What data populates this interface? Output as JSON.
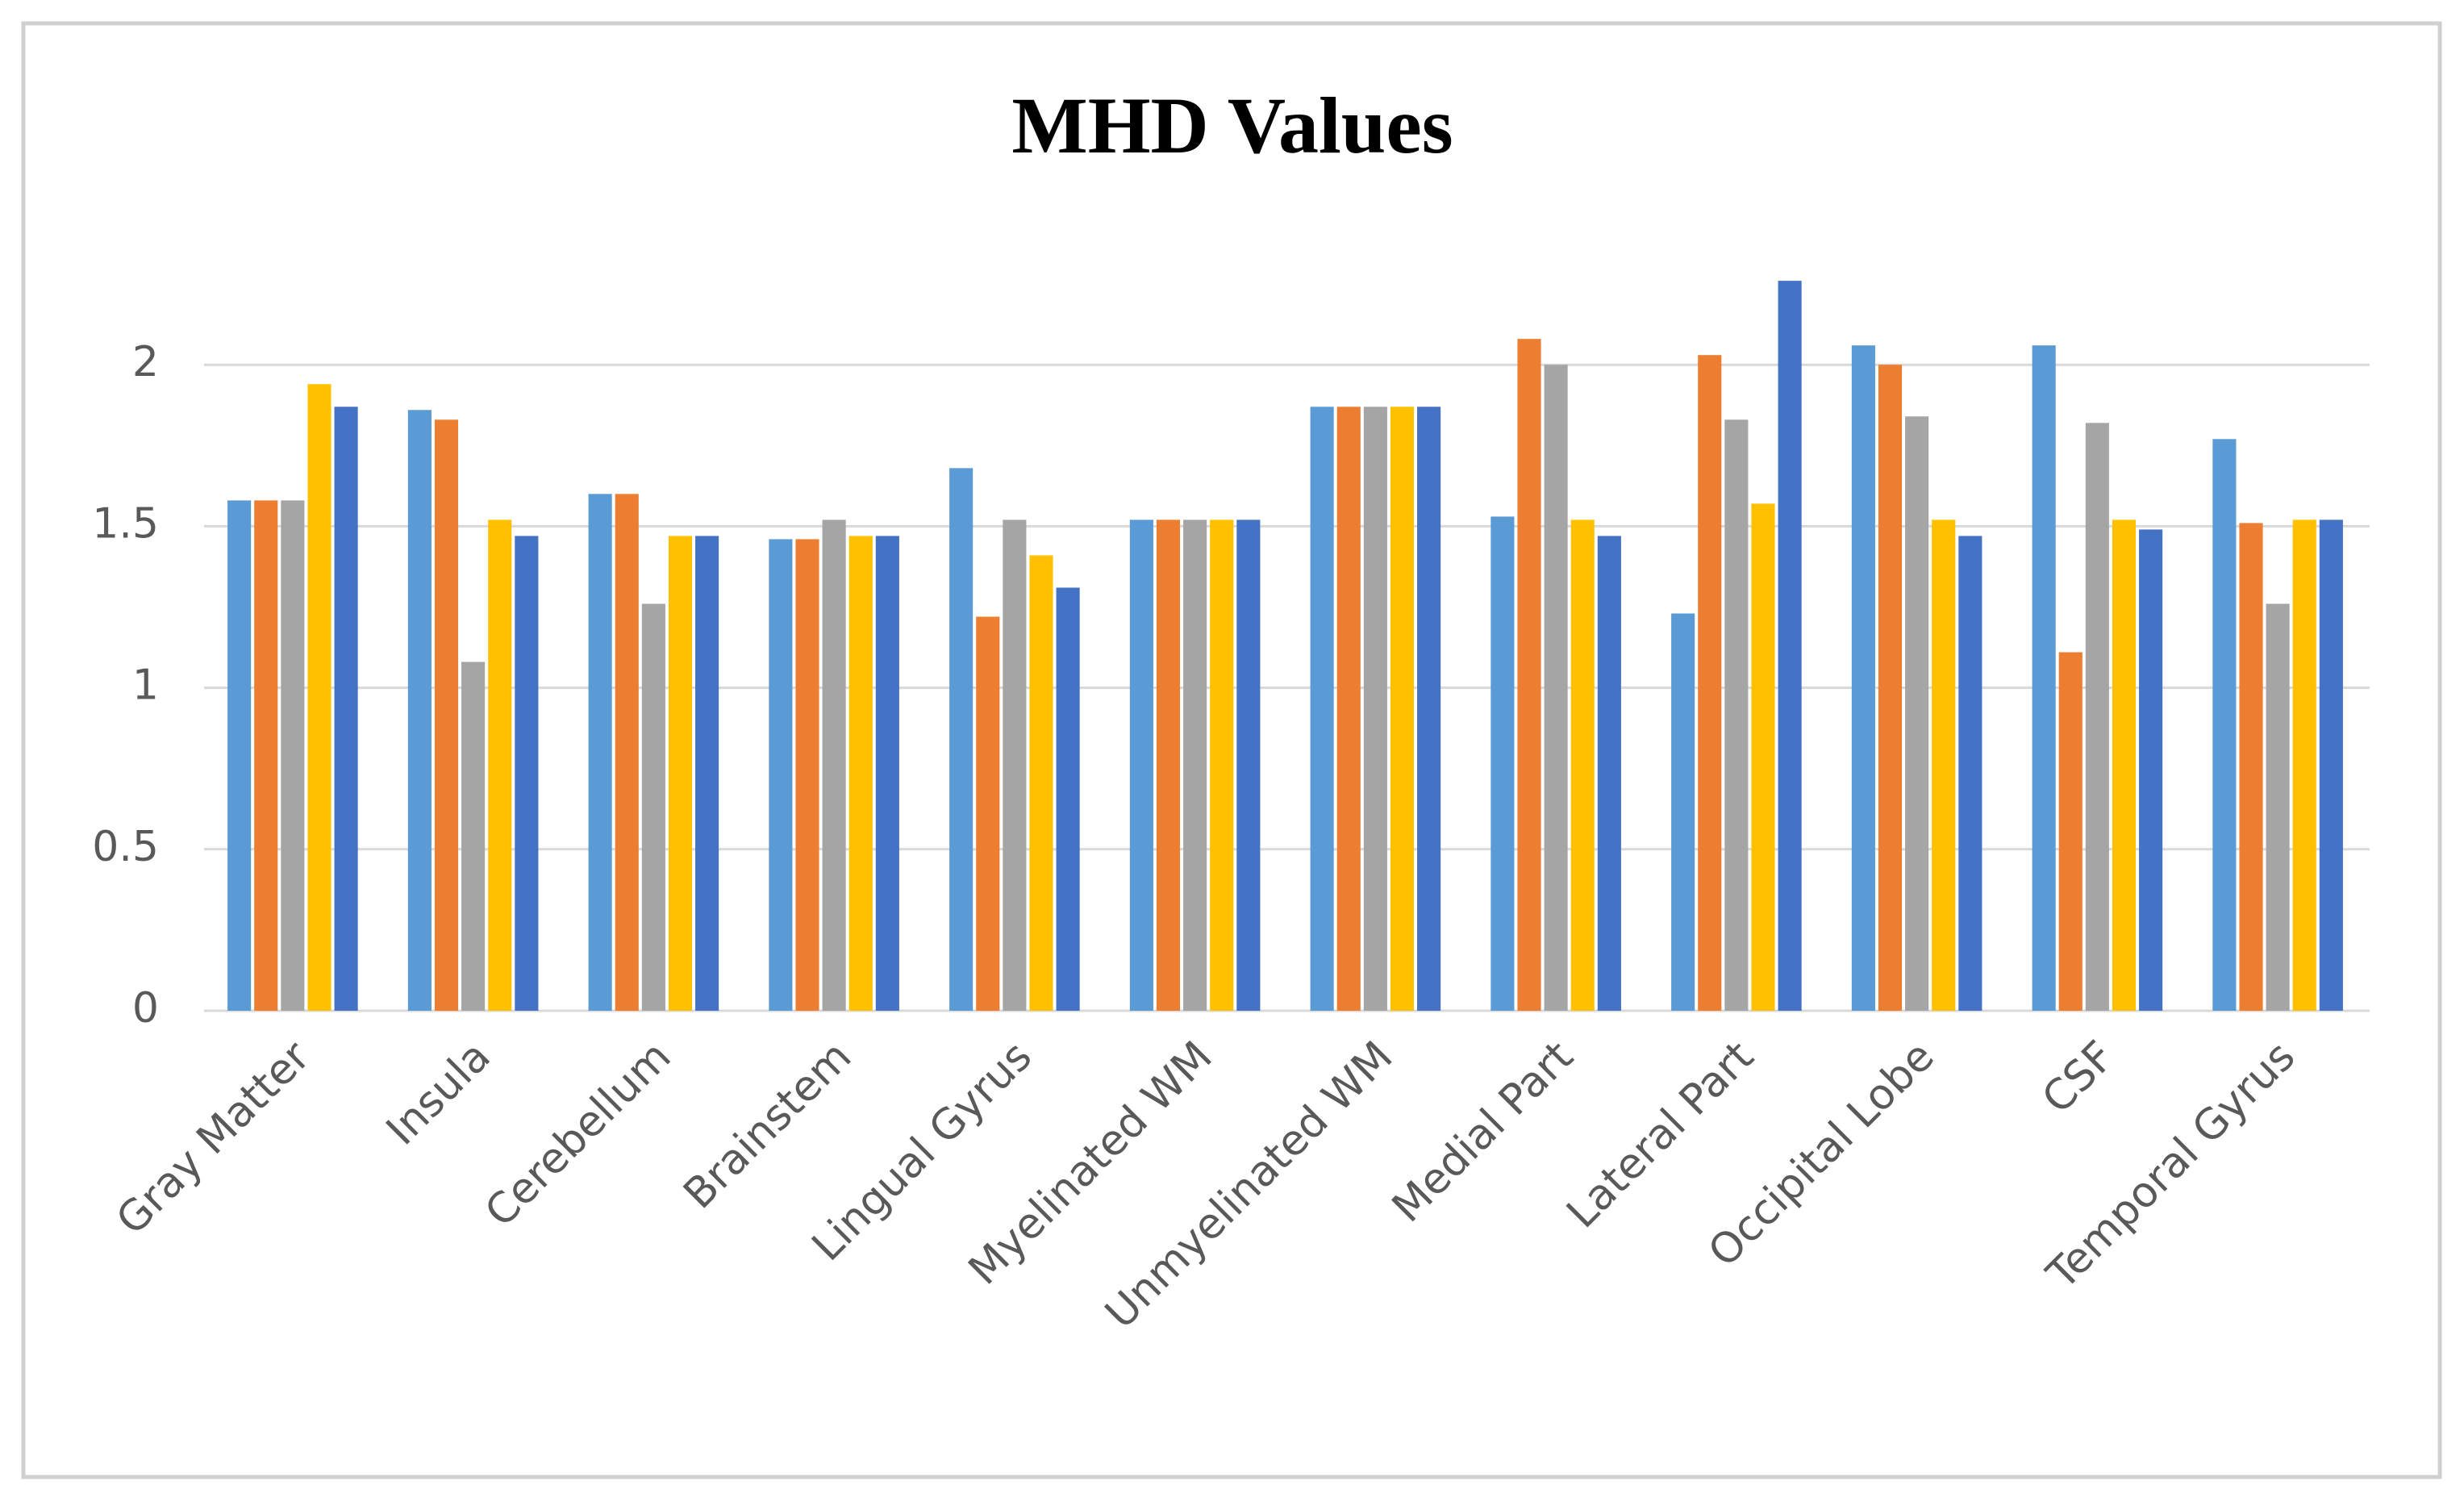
{
  "chart_data": {
    "type": "bar",
    "title": "MHD Values",
    "categories": [
      "Gray Matter",
      "Insula",
      "Cerebellum",
      "Brainstem",
      "Lingual Gyrus",
      "Myelinated WM",
      "Unmyelinated WM",
      "Medial Part",
      "Lateral Part",
      "Occipital Lobe",
      "CSF",
      "Temporal Gyrus"
    ],
    "series": [
      {
        "color": "#5b9bd5",
        "values": [
          1.58,
          1.86,
          1.6,
          1.46,
          1.68,
          1.52,
          1.87,
          1.53,
          1.23,
          2.06,
          2.06,
          1.77
        ]
      },
      {
        "color": "#ed7d31",
        "values": [
          1.58,
          1.83,
          1.6,
          1.46,
          1.22,
          1.52,
          1.87,
          2.08,
          2.03,
          2.0,
          1.11,
          1.51
        ]
      },
      {
        "color": "#a5a5a5",
        "values": [
          1.58,
          1.08,
          1.26,
          1.52,
          1.52,
          1.52,
          1.87,
          2.0,
          1.83,
          1.84,
          1.82,
          1.26
        ]
      },
      {
        "color": "#ffc000",
        "values": [
          1.94,
          1.52,
          1.47,
          1.47,
          1.41,
          1.52,
          1.87,
          1.52,
          1.57,
          1.52,
          1.52,
          1.52
        ]
      },
      {
        "color": "#4472c4",
        "values": [
          1.87,
          1.47,
          1.47,
          1.47,
          1.31,
          1.52,
          1.87,
          1.47,
          2.26,
          1.47,
          1.49,
          1.52
        ]
      }
    ],
    "ylim": [
      0,
      2.5
    ],
    "yticks": [
      0,
      0.5,
      1,
      1.5,
      2
    ],
    "grid": true
  }
}
